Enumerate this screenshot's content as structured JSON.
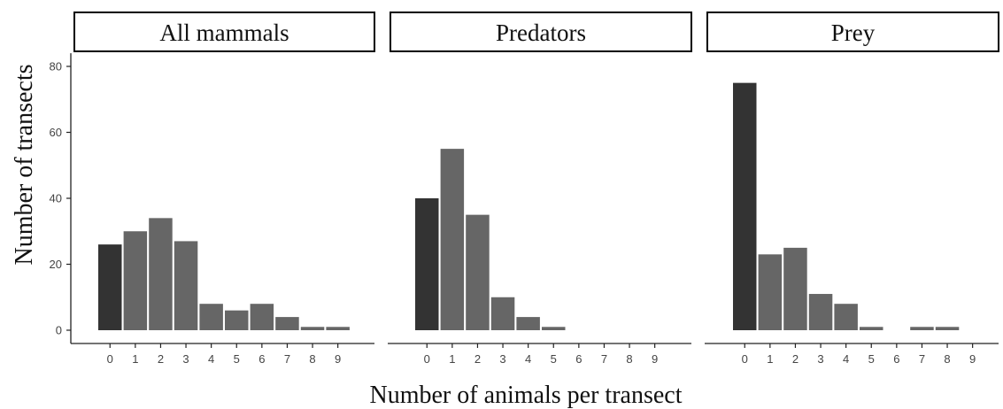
{
  "chart_data": {
    "type": "bar",
    "facet_layout": "3 panels in one row, shared y axis on the left",
    "xlabel": "Number of animals per transect",
    "ylabel": "Number of transects",
    "ylim": [
      0,
      84
    ],
    "yticks": [
      0,
      20,
      40,
      60,
      80
    ],
    "categories": [
      "0",
      "1",
      "2",
      "3",
      "4",
      "5",
      "6",
      "7",
      "8",
      "9"
    ],
    "grid": false,
    "legend": "none",
    "colors": {
      "zero_bar": "#333333",
      "other_bars": "#666666",
      "strip_border": "#000000",
      "axis": "#222222"
    },
    "panels": [
      {
        "title": "All mammals",
        "values": [
          26,
          30,
          34,
          27,
          8,
          6,
          8,
          4,
          1,
          1
        ]
      },
      {
        "title": "Predators",
        "values": [
          40,
          55,
          35,
          10,
          4,
          1,
          0,
          0,
          0,
          0
        ]
      },
      {
        "title": "Prey",
        "values": [
          75,
          23,
          25,
          11,
          8,
          1,
          0,
          1,
          1,
          0
        ]
      }
    ]
  }
}
